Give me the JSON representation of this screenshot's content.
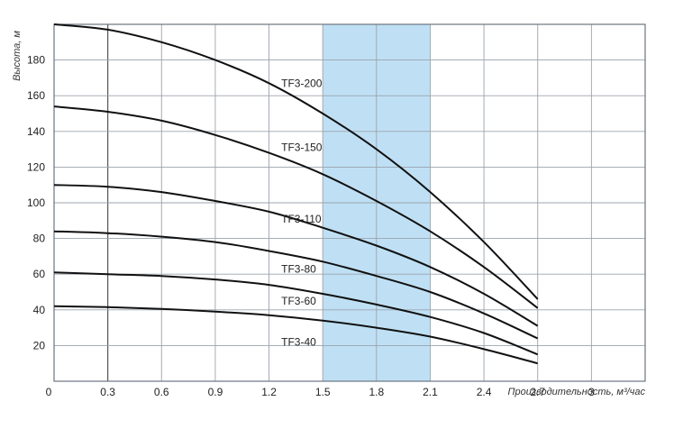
{
  "chart_data": {
    "type": "line",
    "title": "",
    "ylabel": "Высота, м",
    "xlabel": "Производительность, м³/час",
    "xlim": [
      0,
      3.3
    ],
    "ylim": [
      0,
      200
    ],
    "x_ticks": [
      "0",
      "0.3",
      "0.6",
      "0.9",
      "1.2",
      "1.5",
      "1.8",
      "2.1",
      "2.4",
      "2.7",
      "3"
    ],
    "x_tick_values": [
      0,
      0.3,
      0.6,
      0.9,
      1.2,
      1.5,
      1.8,
      2.1,
      2.4,
      2.7,
      3.0
    ],
    "y_ticks": [
      "20",
      "40",
      "60",
      "80",
      "100",
      "120",
      "140",
      "160",
      "180"
    ],
    "y_tick_values": [
      20,
      40,
      60,
      80,
      100,
      120,
      140,
      160,
      180
    ],
    "grid": true,
    "highlight_range": {
      "x": [
        1.5,
        2.1
      ],
      "color": "#bfe0f4"
    },
    "curve_color": "#111111",
    "series": [
      {
        "name": "TF3-200",
        "label_at": [
          1.55,
          167
        ],
        "x": [
          0,
          0.3,
          0.6,
          0.9,
          1.2,
          1.5,
          1.8,
          2.1,
          2.4,
          2.7
        ],
        "y": [
          200,
          197,
          190,
          180,
          167,
          150,
          130,
          106,
          78,
          46
        ]
      },
      {
        "name": "TF3-150",
        "label_at": [
          1.55,
          131
        ],
        "x": [
          0,
          0.3,
          0.6,
          0.9,
          1.2,
          1.5,
          1.8,
          2.1,
          2.4,
          2.7
        ],
        "y": [
          154,
          151,
          146,
          138,
          128,
          116,
          101,
          84,
          64,
          41
        ]
      },
      {
        "name": "TF3-110",
        "label_at": [
          1.55,
          91
        ],
        "x": [
          0,
          0.3,
          0.6,
          0.9,
          1.2,
          1.5,
          1.8,
          2.1,
          2.4,
          2.7
        ],
        "y": [
          110,
          109,
          106,
          101,
          95,
          86,
          76,
          64,
          49,
          31
        ]
      },
      {
        "name": "TF3-80",
        "label_at": [
          1.55,
          63
        ],
        "x": [
          0,
          0.3,
          0.6,
          0.9,
          1.2,
          1.5,
          1.8,
          2.1,
          2.4,
          2.7
        ],
        "y": [
          84,
          83,
          81,
          78,
          73,
          67,
          59,
          50,
          38,
          24
        ]
      },
      {
        "name": "TF3-60",
        "label_at": [
          1.55,
          45
        ],
        "x": [
          0,
          0.3,
          0.6,
          0.9,
          1.2,
          1.5,
          1.8,
          2.1,
          2.4,
          2.7
        ],
        "y": [
          61,
          60,
          59,
          57,
          54,
          49,
          43,
          36,
          27,
          15
        ]
      },
      {
        "name": "TF3-40",
        "label_at": [
          1.55,
          22
        ],
        "x": [
          0,
          0.3,
          0.6,
          0.9,
          1.2,
          1.5,
          1.8,
          2.1,
          2.4,
          2.7
        ],
        "y": [
          42,
          41.5,
          40.5,
          39,
          37,
          34,
          30,
          25,
          18,
          10
        ]
      }
    ]
  }
}
